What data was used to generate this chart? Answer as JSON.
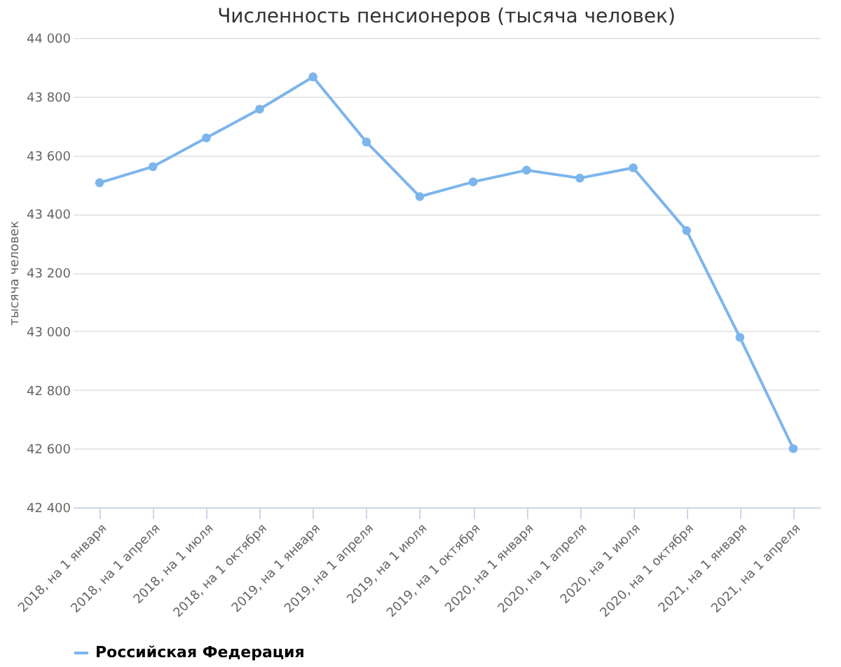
{
  "chart_data": {
    "type": "line",
    "title": "Численность пенсионеров (тысяча человек)",
    "ylabel": "тысяча человек",
    "categories": [
      "2018, на 1 января",
      "2018, на 1 апреля",
      "2018, на 1 июля",
      "2018, на 1 октября",
      "2019, на 1 января",
      "2019, на 1 апреля",
      "2019, на 1 июля",
      "2019, на 1 октября",
      "2020, на 1 января",
      "2020, на 1 апреля",
      "2020, на 1 июля",
      "2020, на 1 октября",
      "2021, на 1 января",
      "2021, на 1 апреля"
    ],
    "series": [
      {
        "name": "Российская Федерация",
        "color": "#7cb5ec",
        "values": [
          43506,
          43561,
          43659,
          43757,
          43867,
          43645,
          43459,
          43509,
          43549,
          43522,
          43557,
          43343,
          42979,
          42600
        ]
      }
    ],
    "ylim": [
      42400,
      44000
    ],
    "yticks": [
      {
        "value": 42400,
        "label": "42 400"
      },
      {
        "value": 42600,
        "label": "42 600"
      },
      {
        "value": 42800,
        "label": "42 800"
      },
      {
        "value": 43000,
        "label": "43 000"
      },
      {
        "value": 43200,
        "label": "43 200"
      },
      {
        "value": 43400,
        "label": "43 400"
      },
      {
        "value": 43600,
        "label": "43 600"
      },
      {
        "value": 43800,
        "label": "43 800"
      },
      {
        "value": 44000,
        "label": "44 000"
      }
    ],
    "grid": "y",
    "legend": "bottom",
    "marker": "circle",
    "line_style": "solid"
  }
}
